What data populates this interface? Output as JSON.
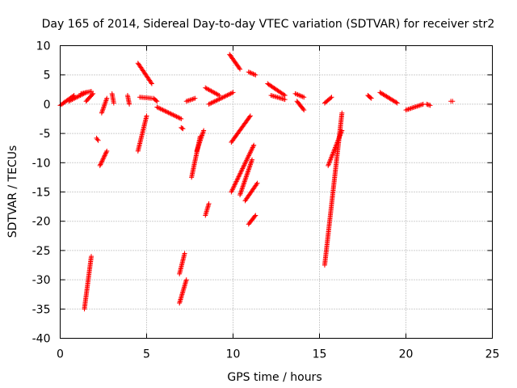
{
  "chart_data": {
    "type": "scatter",
    "title": "Day 165 of 2014, Sidereal Day-to-day VTEC variation (SDTVAR) for receiver str2",
    "xlabel": "GPS time / hours",
    "ylabel": "SDTVAR / TECUs",
    "xlim": [
      0,
      25
    ],
    "ylim": [
      -40,
      10
    ],
    "xticks": [
      "0",
      "5",
      "10",
      "15",
      "20",
      "25"
    ],
    "yticks": [
      "10",
      "5",
      "0",
      "-5",
      "-10",
      "-15",
      "-20",
      "-25",
      "-30",
      "-35",
      "-40"
    ],
    "grid": true,
    "marker": "+",
    "color": "#ff0000",
    "series": [
      {
        "name": "str2",
        "segments": [
          {
            "x": [
              0.0,
              0.8
            ],
            "y": [
              -0.2,
              1.5
            ]
          },
          {
            "x": [
              0.5,
              1.5
            ],
            "y": [
              0.5,
              2.0
            ]
          },
          {
            "x": [
              1.2,
              1.8
            ],
            "y": [
              1.8,
              2.2
            ]
          },
          {
            "x": [
              1.5,
              1.9
            ],
            "y": [
              0.5,
              1.8
            ]
          },
          {
            "x": [
              1.4,
              1.8
            ],
            "y": [
              -35.0,
              -26.0
            ]
          },
          {
            "x": [
              2.1,
              2.2
            ],
            "y": [
              -5.8,
              -6.2
            ]
          },
          {
            "x": [
              2.3,
              2.7
            ],
            "y": [
              -10.5,
              -8.0
            ]
          },
          {
            "x": [
              2.4,
              2.7
            ],
            "y": [
              -1.5,
              1.0
            ]
          },
          {
            "x": [
              3.0,
              3.1
            ],
            "y": [
              1.8,
              0.2
            ]
          },
          {
            "x": [
              3.9,
              4.0
            ],
            "y": [
              1.5,
              0.0
            ]
          },
          {
            "x": [
              4.5,
              5.3
            ],
            "y": [
              7.0,
              3.5
            ]
          },
          {
            "x": [
              4.5,
              5.0
            ],
            "y": [
              -8.0,
              -2.0
            ]
          },
          {
            "x": [
              4.6,
              5.3
            ],
            "y": [
              1.2,
              1.0
            ]
          },
          {
            "x": [
              5.4,
              5.6
            ],
            "y": [
              1.0,
              0.5
            ]
          },
          {
            "x": [
              5.6,
              7.0
            ],
            "y": [
              -0.5,
              -2.5
            ]
          },
          {
            "x": [
              6.9,
              7.3
            ],
            "y": [
              -34.0,
              -30.0
            ]
          },
          {
            "x": [
              6.9,
              7.2
            ],
            "y": [
              -29.0,
              -25.5
            ]
          },
          {
            "x": [
              7.0,
              7.1
            ],
            "y": [
              -4.0,
              -4.2
            ]
          },
          {
            "x": [
              7.3,
              7.8
            ],
            "y": [
              0.5,
              1.0
            ]
          },
          {
            "x": [
              7.6,
              8.1
            ],
            "y": [
              -12.5,
              -5.5
            ]
          },
          {
            "x": [
              7.9,
              8.3
            ],
            "y": [
              -8.0,
              -4.5
            ]
          },
          {
            "x": [
              8.4,
              8.6
            ],
            "y": [
              -19.0,
              -17.0
            ]
          },
          {
            "x": [
              8.4,
              9.2
            ],
            "y": [
              2.8,
              1.5
            ]
          },
          {
            "x": [
              8.6,
              10.0
            ],
            "y": [
              0.0,
              2.0
            ]
          },
          {
            "x": [
              9.8,
              10.4
            ],
            "y": [
              8.5,
              6.0
            ]
          },
          {
            "x": [
              9.9,
              11.0
            ],
            "y": [
              -6.5,
              -2.0
            ]
          },
          {
            "x": [
              9.9,
              11.2
            ],
            "y": [
              -15.0,
              -7.0
            ]
          },
          {
            "x": [
              10.4,
              11.1
            ],
            "y": [
              -15.5,
              -9.5
            ]
          },
          {
            "x": [
              10.7,
              11.4
            ],
            "y": [
              -16.5,
              -13.5
            ]
          },
          {
            "x": [
              10.9,
              11.3
            ],
            "y": [
              -20.5,
              -19.0
            ]
          },
          {
            "x": [
              10.9,
              11.3
            ],
            "y": [
              5.5,
              5.0
            ]
          },
          {
            "x": [
              12.0,
              13.0
            ],
            "y": [
              3.5,
              1.5
            ]
          },
          {
            "x": [
              12.2,
              13.0
            ],
            "y": [
              1.5,
              0.8
            ]
          },
          {
            "x": [
              13.6,
              14.1
            ],
            "y": [
              1.8,
              1.2
            ]
          },
          {
            "x": [
              13.7,
              14.1
            ],
            "y": [
              0.5,
              -1.0
            ]
          },
          {
            "x": [
              15.3,
              16.3
            ],
            "y": [
              -27.5,
              -1.5
            ]
          },
          {
            "x": [
              15.5,
              16.3
            ],
            "y": [
              -10.5,
              -4.5
            ]
          },
          {
            "x": [
              15.3,
              15.7
            ],
            "y": [
              0.2,
              1.2
            ]
          },
          {
            "x": [
              17.8,
              18.0
            ],
            "y": [
              1.5,
              1.0
            ]
          },
          {
            "x": [
              18.5,
              19.5
            ],
            "y": [
              2.0,
              0.2
            ]
          },
          {
            "x": [
              20.0,
              21.0
            ],
            "y": [
              -1.0,
              0.0
            ]
          },
          {
            "x": [
              21.2,
              21.4
            ],
            "y": [
              0.0,
              -0.2
            ]
          },
          {
            "x": [
              22.6,
              22.7
            ],
            "y": [
              0.5,
              0.5
            ]
          }
        ]
      }
    ]
  }
}
